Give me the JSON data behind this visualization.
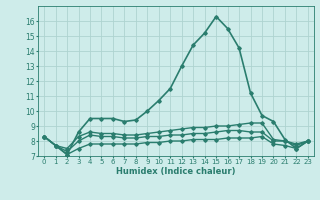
{
  "x": [
    0,
    1,
    2,
    3,
    4,
    5,
    6,
    7,
    8,
    9,
    10,
    11,
    12,
    13,
    14,
    15,
    16,
    17,
    18,
    19,
    20,
    21,
    22,
    23
  ],
  "lines": [
    {
      "y": [
        8.3,
        7.7,
        7.1,
        8.6,
        9.5,
        9.5,
        9.5,
        9.3,
        9.4,
        10.0,
        10.7,
        11.5,
        13.0,
        14.4,
        15.2,
        16.3,
        15.5,
        14.2,
        11.2,
        9.7,
        9.3,
        8.1,
        7.5,
        8.0
      ],
      "color": "#2a7d6e",
      "lw": 1.2
    },
    {
      "y": [
        8.3,
        7.7,
        7.5,
        8.3,
        8.6,
        8.5,
        8.5,
        8.4,
        8.4,
        8.5,
        8.6,
        8.7,
        8.8,
        8.9,
        8.9,
        9.0,
        9.0,
        9.1,
        9.2,
        9.2,
        8.1,
        8.0,
        7.8,
        8.0
      ],
      "color": "#2a7d6e",
      "lw": 1.0
    },
    {
      "y": [
        8.3,
        7.7,
        7.3,
        8.0,
        8.4,
        8.3,
        8.3,
        8.2,
        8.2,
        8.3,
        8.3,
        8.4,
        8.4,
        8.5,
        8.5,
        8.6,
        8.7,
        8.7,
        8.6,
        8.6,
        8.0,
        8.0,
        7.7,
        8.0
      ],
      "color": "#2a7d6e",
      "lw": 1.0
    },
    {
      "y": [
        8.3,
        7.7,
        7.1,
        7.5,
        7.8,
        7.8,
        7.8,
        7.8,
        7.8,
        7.9,
        7.9,
        8.0,
        8.0,
        8.1,
        8.1,
        8.1,
        8.2,
        8.2,
        8.2,
        8.3,
        7.8,
        7.7,
        7.5,
        8.0
      ],
      "color": "#2a7d6e",
      "lw": 1.0
    }
  ],
  "marker": "D",
  "markersize": 1.8,
  "bg_color": "#ceecea",
  "grid_color": "#aed4d0",
  "tick_color": "#2a7d6e",
  "label_color": "#2a7d6e",
  "xlabel": "Humidex (Indice chaleur)",
  "ylim": [
    7,
    17
  ],
  "xlim": [
    -0.5,
    23.5
  ],
  "yticks": [
    7,
    8,
    9,
    10,
    11,
    12,
    13,
    14,
    15,
    16
  ],
  "xticks": [
    0,
    1,
    2,
    3,
    4,
    5,
    6,
    7,
    8,
    9,
    10,
    11,
    12,
    13,
    14,
    15,
    16,
    17,
    18,
    19,
    20,
    21,
    22,
    23
  ]
}
